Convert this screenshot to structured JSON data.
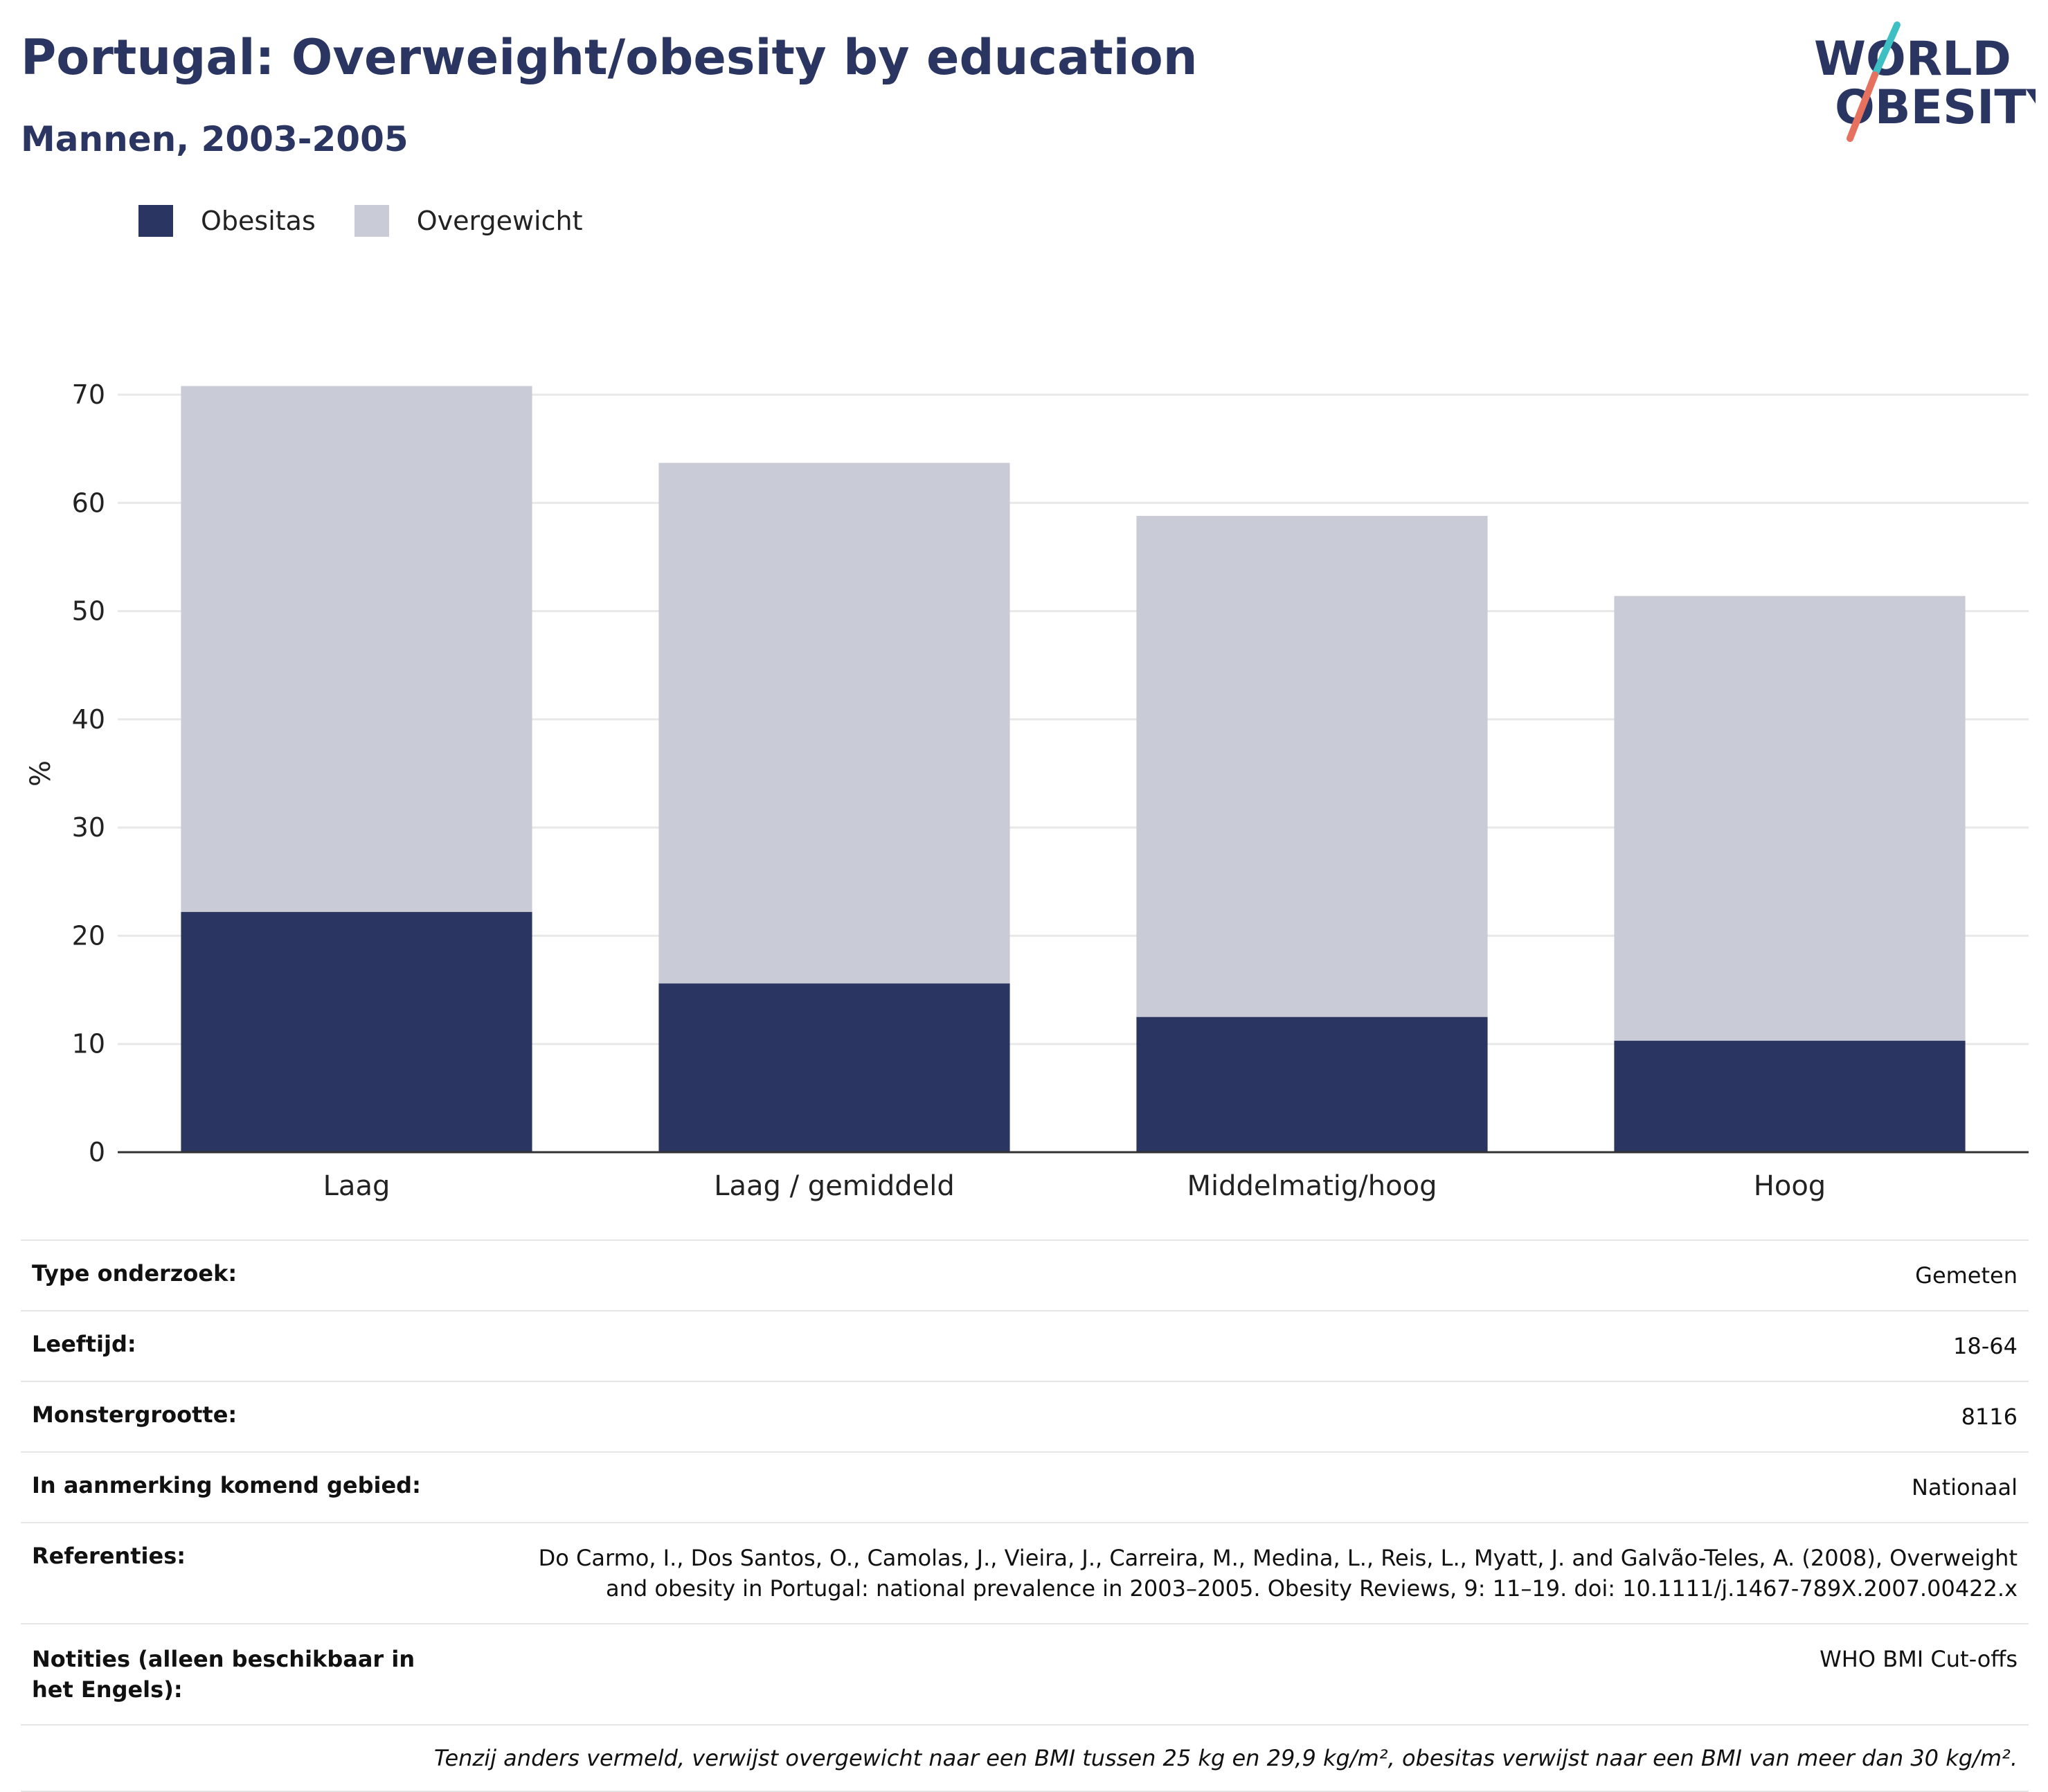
{
  "title": "Portugal: Overweight/obesity by education",
  "subtitle": "Mannen, 2003-2005",
  "logo": {
    "line1": "WORLD",
    "line2": "OBESITY",
    "colors": {
      "text": "#2a3561",
      "teal": "#3ebfc4",
      "coral": "#e5715e"
    }
  },
  "colors": {
    "obesitas": "#2a3561",
    "overgewicht": "#c9cbd6",
    "grid": "#e8e8e8",
    "axis": "#333333"
  },
  "chart_data": {
    "type": "bar",
    "stacked": true,
    "categories": [
      "Laag",
      "Laag / gemiddeld",
      "Middelmatig/hoog",
      "Hoog"
    ],
    "series": [
      {
        "name": "Obesitas",
        "values": [
          22.2,
          15.6,
          12.5,
          10.3
        ]
      },
      {
        "name": "Overgewicht",
        "values": [
          48.6,
          48.1,
          46.3,
          41.1
        ]
      }
    ],
    "ylabel": "%",
    "ylim": [
      0,
      70
    ],
    "yticks": [
      0,
      10,
      20,
      30,
      40,
      50,
      60,
      70
    ],
    "legend": "top-left",
    "grid": true
  },
  "meta": {
    "rows": [
      {
        "key": "Type onderzoek:",
        "value": "Gemeten"
      },
      {
        "key": "Leeftijd:",
        "value": "18-64"
      },
      {
        "key": "Monstergrootte:",
        "value": "8116"
      },
      {
        "key": "In aanmerking komend gebied:",
        "value": "Nationaal"
      },
      {
        "key": "Referenties:",
        "value": "Do Carmo, I., Dos Santos, O., Camolas, J., Vieira, J., Carreira, M., Medina, L., Reis, L., Myatt, J. and Galvão-Teles, A. (2008), Overweight and obesity in Portugal: national prevalence in 2003–2005. Obesity Reviews, 9: 11–19. doi: 10.1111/j.1467-789X.2007.00422.x"
      },
      {
        "key": "Notities (alleen beschikbaar in het Engels):",
        "value": "WHO BMI Cut-offs"
      }
    ],
    "note": "Tenzij anders vermeld, verwijst overgewicht naar een BMI tussen 25 kg en 29,9 kg/m², obesitas verwijst naar een BMI van meer dan 30 kg/m²."
  }
}
